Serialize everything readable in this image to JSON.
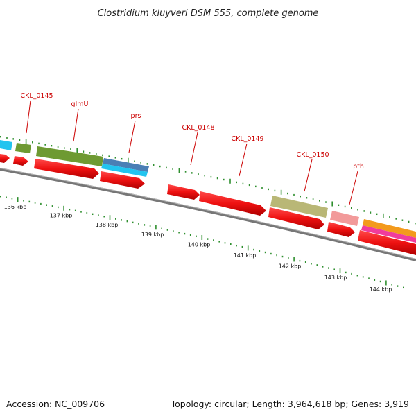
{
  "title": "Clostridium kluyveri DSM 555, complete genome",
  "accession": "Accession: NC_009706",
  "summary": "Topology: circular; Length: 3,964,618 bp; Genes: 3,919",
  "tick_labels": [
    "136 kbp",
    "137 kbp",
    "138 kbp",
    "139 kbp",
    "140 kbp",
    "141 kbp",
    "142 kbp",
    "143 kbp",
    "144 kbp"
  ],
  "gene_labels": [
    "CKL_0145",
    "glmU",
    "prs",
    "CKL_0148",
    "CKL_0149",
    "CKL_0150",
    "pth"
  ],
  "colors": {
    "cds": "#ee1111",
    "cds_dark": "#aa0000",
    "backbone": "#8a8a8a",
    "tick": "#2f8f2f",
    "label": "#cc0000",
    "cog_cyan": "#22c4ef",
    "cog_green": "#6e9a32",
    "cog_blue": "#4a7fb5",
    "cog_khaki": "#b9b776",
    "cog_pink": "#f29a9a",
    "cog_orange": "#f39a1c",
    "cog_magenta": "#f03c9c"
  }
}
